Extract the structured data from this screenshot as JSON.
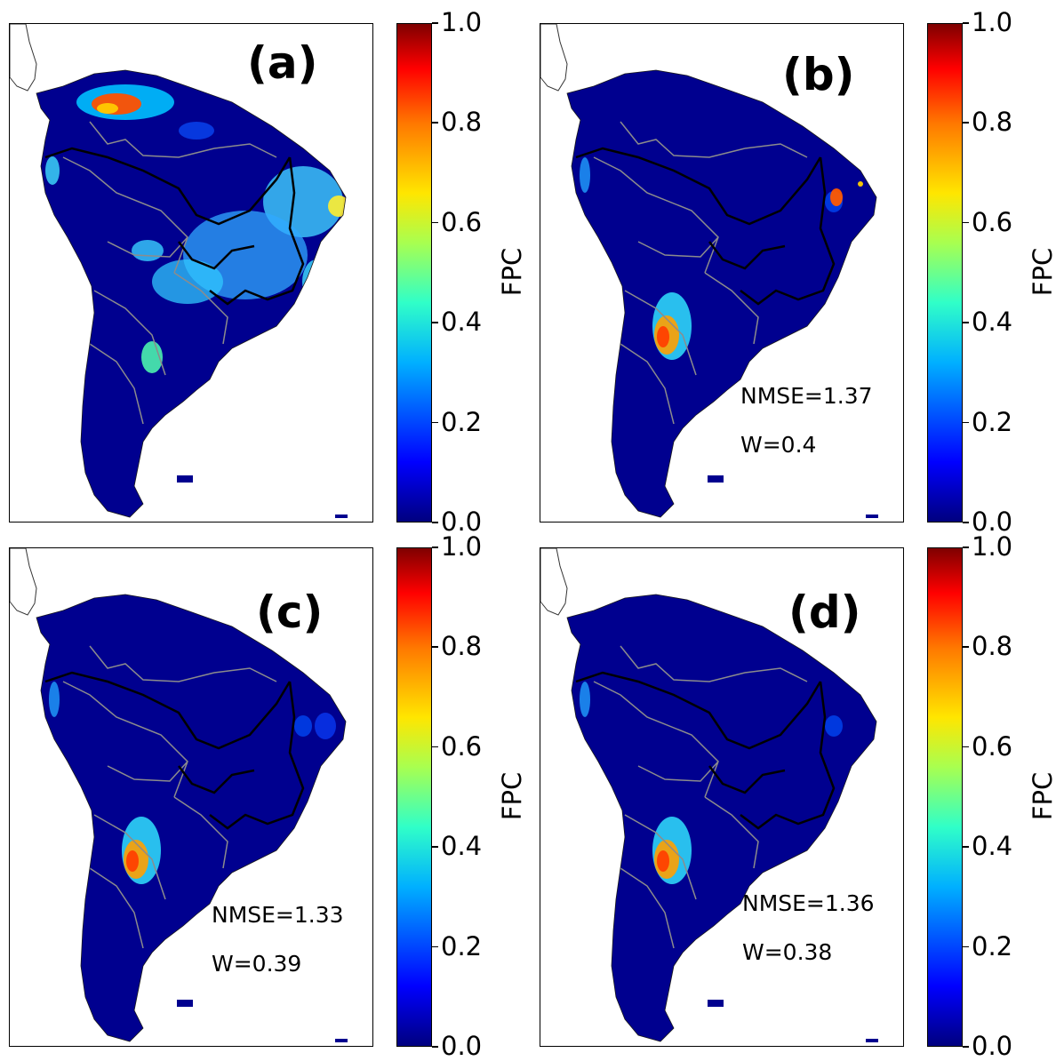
{
  "panels": [
    {
      "letter": "(a)",
      "nmse": "",
      "w": "",
      "map_type": "observed"
    },
    {
      "letter": "(b)",
      "nmse": "NMSE=1.37",
      "w": "W=0.4",
      "map_type": "model"
    },
    {
      "letter": "(c)",
      "nmse": "NMSE=1.33",
      "w": "W=0.39",
      "map_type": "model"
    },
    {
      "letter": "(d)",
      "nmse": "NMSE=1.36",
      "w": "W=0.38",
      "map_type": "model"
    }
  ],
  "colorbar": {
    "label": "FPC",
    "ticks": [
      "1.0",
      "0.8",
      "0.6",
      "0.4",
      "0.2",
      "0.0"
    ],
    "colormap": "jet",
    "range": [
      0.0,
      1.0
    ]
  },
  "colors": {
    "ocean": "#ffffff",
    "land_base": "#00008f",
    "country_border": "#8c8c8c",
    "biome_border": "#000000"
  }
}
